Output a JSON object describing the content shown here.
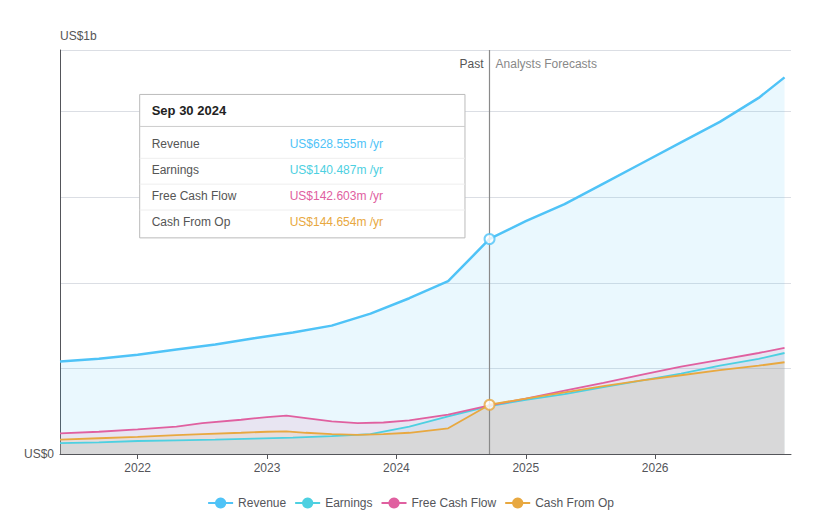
{
  "chart_data": {
    "type": "line",
    "ylabel_top": "US$1b",
    "ylabel_bottom": "US$0",
    "past_label": "Past",
    "forecast_label": "Analysts Forecasts",
    "divider": {
      "x": 2024.72,
      "points": [
        {
          "series": "Revenue",
          "y": 0.628
        },
        {
          "series": "Cash From Op",
          "y": 0.144
        }
      ]
    },
    "tooltip": {
      "title": "Sep 30 2024",
      "items": [
        {
          "label": "Revenue",
          "value": "US$628.555m /yr",
          "color": "#4fc3f7"
        },
        {
          "label": "Earnings",
          "value": "US$140.487m /yr",
          "color": "#4dd0e1"
        },
        {
          "label": "Free Cash Flow",
          "value": "US$142.603m /yr",
          "color": "#e060a0"
        },
        {
          "label": "Cash From Op",
          "value": "US$144.654m /yr",
          "color": "#e8a840"
        }
      ]
    },
    "series": [
      {
        "name": "Revenue",
        "color": "#4fc3f7",
        "x": [
          2021.4,
          2021.7,
          2022.0,
          2022.3,
          2022.6,
          2022.9,
          2023.2,
          2023.5,
          2023.8,
          2024.1,
          2024.4,
          2024.72,
          2025.0,
          2025.3,
          2025.6,
          2025.9,
          2026.2,
          2026.5,
          2026.8,
          2027.0
        ],
        "values": [
          0.27,
          0.278,
          0.29,
          0.305,
          0.32,
          0.338,
          0.355,
          0.375,
          0.41,
          0.455,
          0.505,
          0.628,
          0.68,
          0.73,
          0.79,
          0.85,
          0.91,
          0.97,
          1.04,
          1.1
        ]
      },
      {
        "name": "Earnings",
        "color": "#4dd0e1",
        "x": [
          2021.4,
          2021.7,
          2022.0,
          2022.3,
          2022.6,
          2022.9,
          2023.2,
          2023.5,
          2023.8,
          2024.1,
          2024.4,
          2024.72,
          2025.0,
          2025.3,
          2025.6,
          2025.9,
          2026.2,
          2026.5,
          2026.8,
          2027.0
        ],
        "values": [
          0.032,
          0.034,
          0.038,
          0.04,
          0.042,
          0.045,
          0.048,
          0.052,
          0.058,
          0.08,
          0.11,
          0.14,
          0.158,
          0.175,
          0.195,
          0.215,
          0.235,
          0.258,
          0.278,
          0.295
        ]
      },
      {
        "name": "Free Cash Flow",
        "color": "#e060a0",
        "x": [
          2021.4,
          2021.7,
          2022.0,
          2022.3,
          2022.5,
          2022.8,
          2023.0,
          2023.15,
          2023.3,
          2023.5,
          2023.7,
          2023.9,
          2024.1,
          2024.4,
          2024.72,
          2025.0,
          2025.3,
          2025.6,
          2025.9,
          2026.2,
          2026.5,
          2026.8,
          2027.0
        ],
        "values": [
          0.06,
          0.065,
          0.072,
          0.08,
          0.09,
          0.1,
          0.108,
          0.112,
          0.105,
          0.095,
          0.09,
          0.092,
          0.098,
          0.115,
          0.142,
          0.162,
          0.185,
          0.208,
          0.232,
          0.255,
          0.275,
          0.295,
          0.31
        ]
      },
      {
        "name": "Cash From Op",
        "color": "#e8a840",
        "x": [
          2021.4,
          2021.7,
          2022.0,
          2022.3,
          2022.5,
          2022.8,
          2023.0,
          2023.15,
          2023.3,
          2023.5,
          2023.7,
          2023.9,
          2024.1,
          2024.4,
          2024.72,
          2025.0,
          2025.3,
          2025.6,
          2025.9,
          2026.2,
          2026.5,
          2026.8,
          2027.0
        ],
        "values": [
          0.042,
          0.046,
          0.05,
          0.055,
          0.058,
          0.062,
          0.065,
          0.066,
          0.062,
          0.058,
          0.056,
          0.058,
          0.062,
          0.075,
          0.144,
          0.162,
          0.18,
          0.198,
          0.215,
          0.23,
          0.245,
          0.258,
          0.268
        ]
      }
    ],
    "xlim": [
      2021.4,
      2027.05
    ],
    "xticks": [
      2022,
      2023,
      2024,
      2025,
      2026
    ],
    "ylim": [
      0,
      1.18
    ],
    "yticks": [
      0,
      0.25,
      0.5,
      0.75,
      1
    ],
    "grid": true,
    "tick_labels": "x",
    "legend": "bottom"
  }
}
